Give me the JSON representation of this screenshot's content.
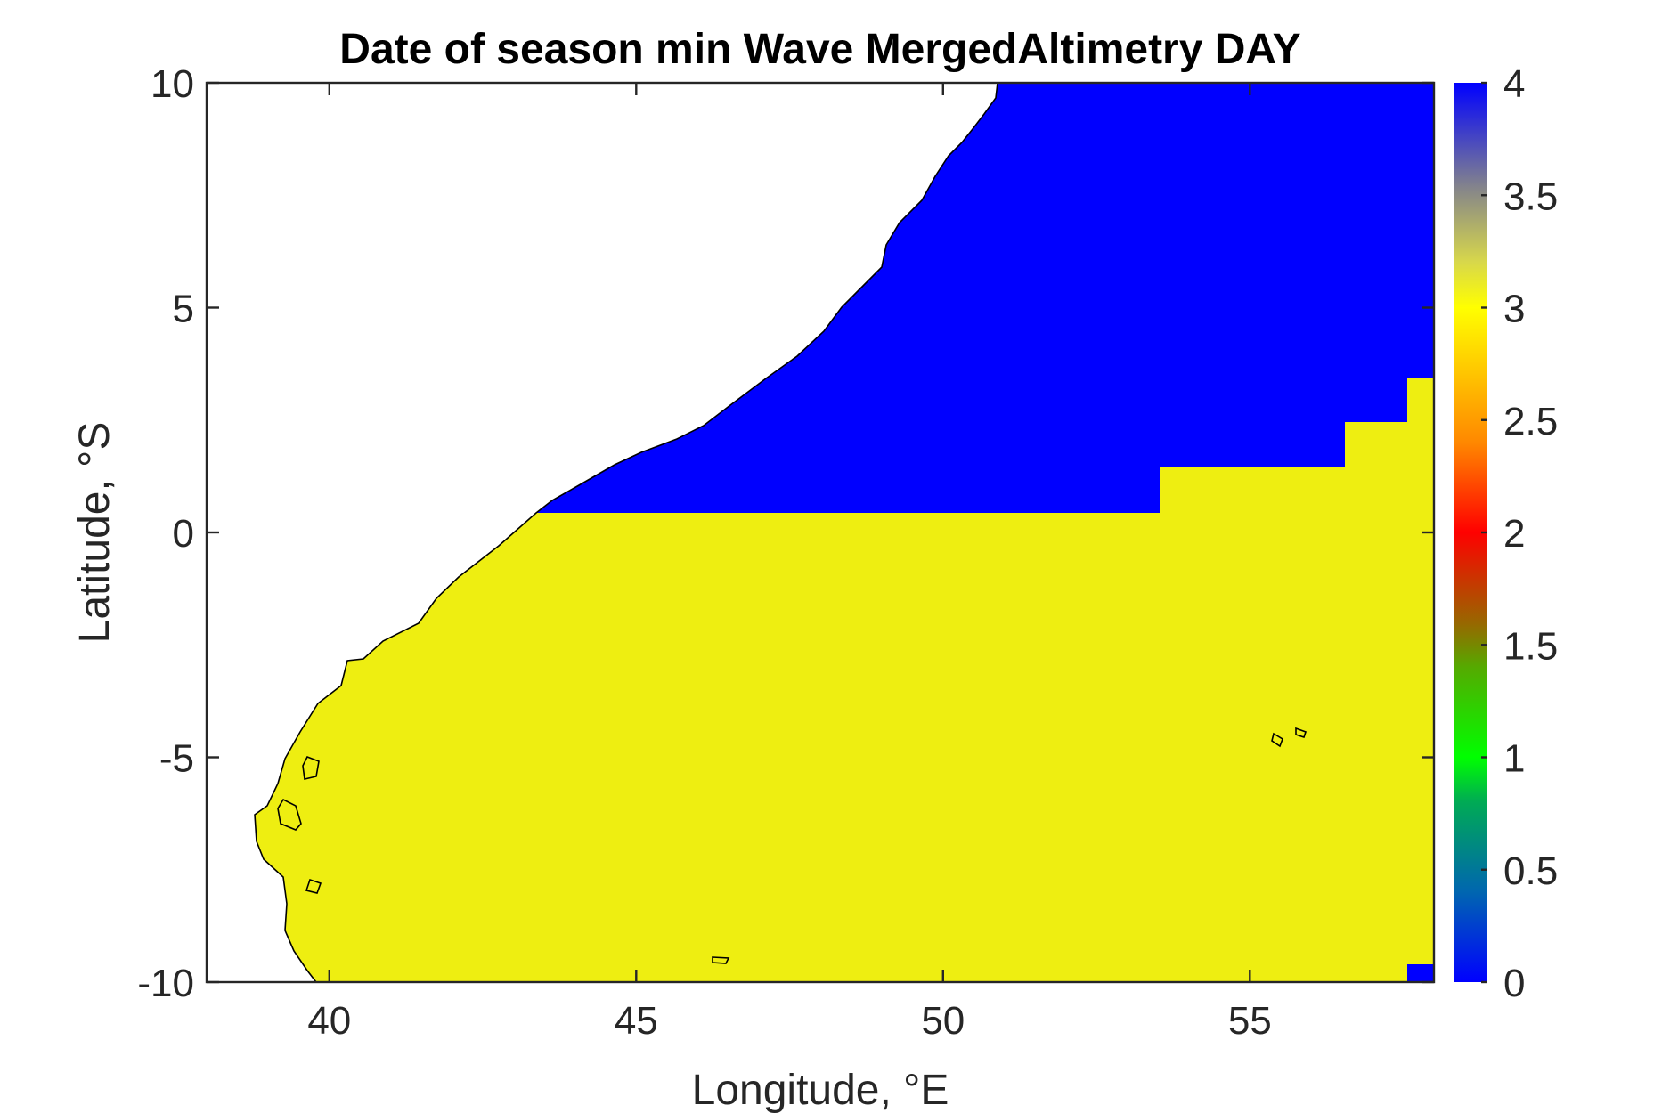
{
  "chart_data": {
    "type": "heatmap",
    "title": "Date of season min Wave MergedAltimetry DAY",
    "xlabel": "Longitude, °E",
    "ylabel": "Latitude, °S",
    "xlim": [
      38,
      58
    ],
    "ylim": [
      -10,
      10
    ],
    "xticks": [
      40,
      45,
      50,
      55
    ],
    "xtick_labels": [
      "40",
      "45",
      "50",
      "55"
    ],
    "yticks": [
      -10,
      -5,
      0,
      5,
      10
    ],
    "ytick_labels": [
      "-10",
      "-5",
      "0",
      "5",
      "10"
    ],
    "grid": false,
    "colorbar": {
      "range": [
        0,
        4
      ],
      "ticks": [
        0,
        0.5,
        1,
        1.5,
        2,
        2.5,
        3,
        3.5,
        4
      ],
      "tick_labels": [
        "0",
        "0.5",
        "1",
        "1.5",
        "2",
        "2.5",
        "3",
        "3.5",
        "4"
      ]
    },
    "regions": [
      {
        "value": 4,
        "color": "#0000ff",
        "description_lon": [
          43.5,
          58
        ],
        "description_lat": [
          0.5,
          10
        ]
      },
      {
        "value": 3,
        "color": "#eeee11",
        "description_lon": [
          39,
          58
        ],
        "description_lat": [
          -10,
          3.5
        ]
      }
    ],
    "land_color": "#ffffff"
  }
}
